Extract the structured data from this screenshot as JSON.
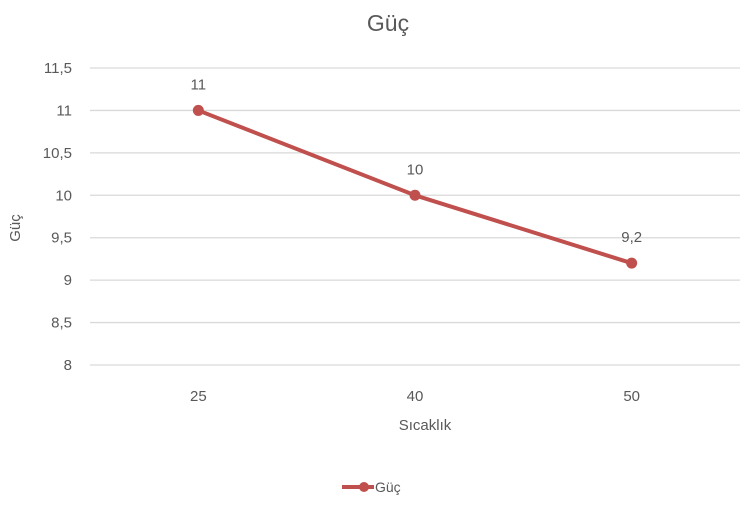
{
  "chart_data": {
    "type": "line",
    "title": "Güç",
    "xlabel": "Sıcaklık",
    "ylabel": "Güç",
    "categories": [
      "25",
      "40",
      "50"
    ],
    "series": [
      {
        "name": "Güç",
        "values": [
          11,
          10,
          9.2
        ],
        "data_labels": [
          "11",
          "10",
          "9,2"
        ],
        "color": "#c0504d"
      }
    ],
    "ylim": [
      8,
      11.5
    ],
    "yticks": [
      8,
      8.5,
      9,
      9.5,
      10,
      10.5,
      11,
      11.5
    ],
    "ytick_labels": [
      "8",
      "8,5",
      "9",
      "9,5",
      "10",
      "10,5",
      "11",
      "11,5"
    ],
    "grid": true,
    "gridline_color": "#d9d9d9",
    "legend": "bottom"
  }
}
